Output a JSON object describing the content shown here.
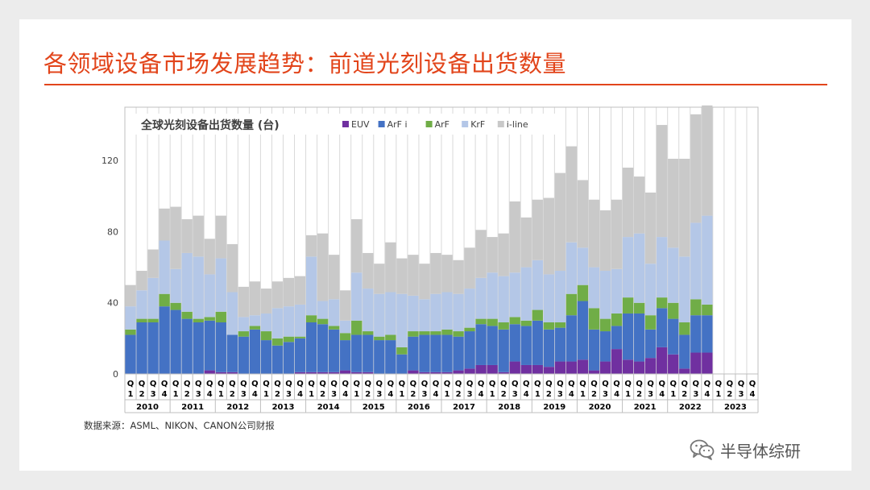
{
  "slide": {
    "title": "各领域设备市场发展趋势：前道光刻设备出货数量",
    "source": "数据来源：ASML、NIKON、CANON公司财报",
    "watermark": "半导体综研"
  },
  "chart_data": {
    "type": "bar",
    "stacked": true,
    "title": "全球光刻设备出货数量 (台)",
    "xlabel": "",
    "ylabel": "",
    "ylim": [
      0,
      150
    ],
    "yticks": [
      0,
      40,
      80,
      120
    ],
    "years": [
      "2010",
      "2011",
      "2012",
      "2013",
      "2014",
      "2015",
      "2016",
      "2017",
      "2018",
      "2019",
      "2020",
      "2021",
      "2022",
      "2023"
    ],
    "quarter_labels": [
      "Q1",
      "Q2",
      "Q3",
      "Q4"
    ],
    "categories": [
      "2010 Q1",
      "2010 Q2",
      "2010 Q3",
      "2010 Q4",
      "2011 Q1",
      "2011 Q2",
      "2011 Q3",
      "2011 Q4",
      "2012 Q1",
      "2012 Q2",
      "2012 Q3",
      "2012 Q4",
      "2013 Q1",
      "2013 Q2",
      "2013 Q3",
      "2013 Q4",
      "2014 Q1",
      "2014 Q2",
      "2014 Q3",
      "2014 Q4",
      "2015 Q1",
      "2015 Q2",
      "2015 Q3",
      "2015 Q4",
      "2016 Q1",
      "2016 Q2",
      "2016 Q3",
      "2016 Q4",
      "2017 Q1",
      "2017 Q2",
      "2017 Q3",
      "2017 Q4",
      "2018 Q1",
      "2018 Q2",
      "2018 Q3",
      "2018 Q4",
      "2019 Q1",
      "2019 Q2",
      "2019 Q3",
      "2019 Q4",
      "2020 Q1",
      "2020 Q2",
      "2020 Q3",
      "2020 Q4",
      "2021 Q1",
      "2021 Q2",
      "2021 Q3",
      "2021 Q4",
      "2022 Q1",
      "2022 Q2",
      "2022 Q3",
      "2022 Q4",
      "2023 Q1",
      "2023 Q2",
      "2023 Q3",
      "2023 Q4"
    ],
    "series": [
      {
        "name": "EUV",
        "color": "#7030a0",
        "values": [
          0,
          0,
          0,
          0,
          0,
          0,
          0,
          2,
          1,
          1,
          0,
          0,
          0,
          0,
          0,
          1,
          1,
          1,
          1,
          2,
          1,
          1,
          0,
          0,
          0,
          2,
          1,
          1,
          1,
          2,
          3,
          5,
          5,
          1,
          7,
          5,
          5,
          4,
          7,
          7,
          8,
          2,
          7,
          14,
          8,
          7,
          9,
          15,
          11,
          3,
          12,
          12,
          0,
          0,
          0,
          0
        ]
      },
      {
        "name": "ArF i",
        "color": "#4472c4",
        "values": [
          22,
          29,
          29,
          38,
          36,
          31,
          29,
          28,
          28,
          21,
          21,
          25,
          19,
          16,
          18,
          19,
          28,
          27,
          24,
          17,
          21,
          21,
          19,
          19,
          11,
          19,
          21,
          21,
          21,
          19,
          21,
          23,
          22,
          24,
          21,
          22,
          25,
          21,
          19,
          26,
          33,
          23,
          17,
          13,
          26,
          27,
          16,
          22,
          20,
          19,
          21,
          21,
          0,
          0,
          0,
          0
        ]
      },
      {
        "name": "ArF",
        "color": "#70ad47",
        "values": [
          3,
          2,
          2,
          7,
          4,
          4,
          2,
          2,
          6,
          0,
          3,
          2,
          5,
          4,
          3,
          1,
          4,
          3,
          2,
          4,
          8,
          2,
          2,
          3,
          4,
          3,
          2,
          2,
          3,
          3,
          2,
          3,
          4,
          4,
          4,
          3,
          6,
          4,
          3,
          12,
          9,
          12,
          7,
          7,
          9,
          6,
          8,
          6,
          9,
          7,
          9,
          6,
          0,
          0,
          0,
          0
        ]
      },
      {
        "name": "KrF",
        "color": "#b4c7e7",
        "values": [
          13,
          16,
          23,
          30,
          19,
          33,
          35,
          24,
          30,
          24,
          8,
          6,
          10,
          17,
          17,
          18,
          33,
          10,
          15,
          7,
          27,
          24,
          24,
          24,
          30,
          20,
          18,
          21,
          21,
          21,
          22,
          23,
          26,
          26,
          25,
          30,
          28,
          27,
          29,
          29,
          21,
          23,
          27,
          25,
          34,
          39,
          29,
          34,
          31,
          37,
          43,
          50,
          0,
          0,
          0,
          0
        ]
      },
      {
        "name": "i-line",
        "color": "#c9c9c9",
        "values": [
          12,
          11,
          16,
          18,
          35,
          19,
          23,
          20,
          24,
          27,
          17,
          19,
          14,
          15,
          16,
          16,
          12,
          38,
          25,
          17,
          30,
          20,
          17,
          28,
          20,
          23,
          20,
          23,
          21,
          19,
          23,
          27,
          20,
          24,
          40,
          28,
          34,
          43,
          55,
          54,
          38,
          38,
          34,
          39,
          39,
          32,
          40,
          63,
          50,
          55,
          61,
          62,
          0,
          0,
          0,
          0
        ]
      }
    ],
    "legend": [
      "EUV",
      "ArF i",
      "ArF",
      "KrF",
      "i-line"
    ],
    "legend_position": "top",
    "grid": false
  }
}
